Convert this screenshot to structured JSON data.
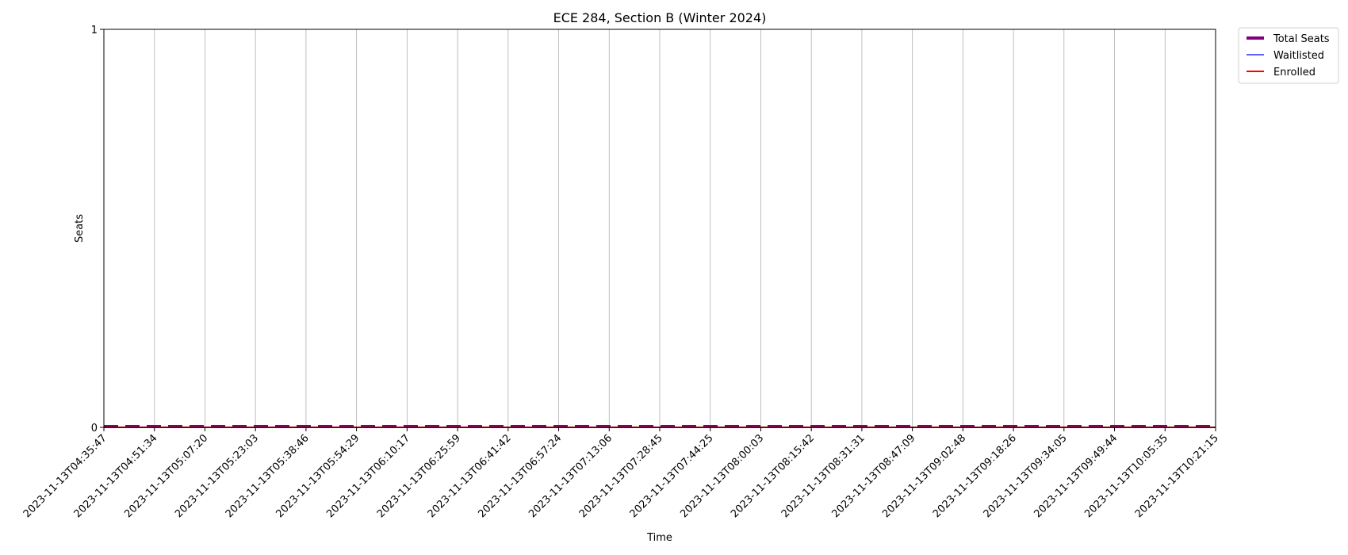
{
  "chart_data": {
    "type": "line",
    "title": "ECE 284, Section B (Winter 2024)",
    "xlabel": "Time",
    "ylabel": "Seats",
    "x": [
      "2023-11-13T04:35:47",
      "2023-11-13T04:51:34",
      "2023-11-13T05:07:20",
      "2023-11-13T05:23:03",
      "2023-11-13T05:38:46",
      "2023-11-13T05:54:29",
      "2023-11-13T06:10:17",
      "2023-11-13T06:25:59",
      "2023-11-13T06:41:42",
      "2023-11-13T06:57:24",
      "2023-11-13T07:13:06",
      "2023-11-13T07:28:45",
      "2023-11-13T07:44:25",
      "2023-11-13T08:00:03",
      "2023-11-13T08:15:42",
      "2023-11-13T08:31:31",
      "2023-11-13T08:47:09",
      "2023-11-13T09:02:48",
      "2023-11-13T09:18:26",
      "2023-11-13T09:34:05",
      "2023-11-13T09:49:44",
      "2023-11-13T10:05:35",
      "2023-11-13T10:21:15"
    ],
    "ylim": [
      0,
      1
    ],
    "yticks": [
      "0",
      "1"
    ],
    "grid": "x-axis only",
    "legend_position": "outside top-right",
    "series": [
      {
        "name": "Total Seats",
        "color": "#800080",
        "style": "dashed",
        "values": [
          0,
          0,
          0,
          0,
          0,
          0,
          0,
          0,
          0,
          0,
          0,
          0,
          0,
          0,
          0,
          0,
          0,
          0,
          0,
          0,
          0,
          0,
          0
        ]
      },
      {
        "name": "Waitlisted",
        "color": "#0000ff",
        "style": "solid",
        "values": [
          0,
          0,
          0,
          0,
          0,
          0,
          0,
          0,
          0,
          0,
          0,
          0,
          0,
          0,
          0,
          0,
          0,
          0,
          0,
          0,
          0,
          0,
          0
        ]
      },
      {
        "name": "Enrolled",
        "color": "#ff0000",
        "style": "solid",
        "values": [
          0,
          0,
          0,
          0,
          0,
          0,
          0,
          0,
          0,
          0,
          0,
          0,
          0,
          0,
          0,
          0,
          0,
          0,
          0,
          0,
          0,
          0,
          0
        ]
      }
    ]
  }
}
